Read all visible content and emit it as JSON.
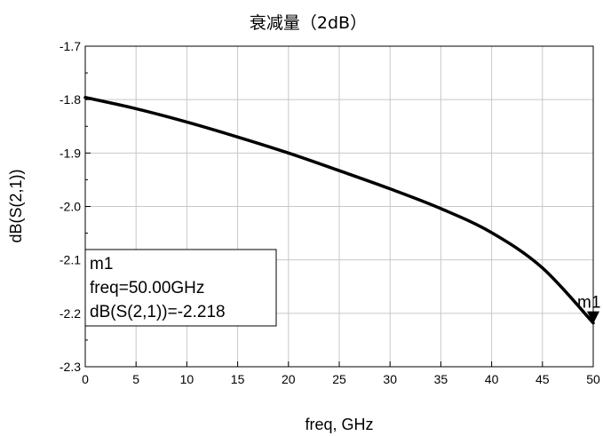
{
  "chart_data": {
    "type": "line",
    "title": "衰减量（2dB）",
    "xlabel": "freq, GHz",
    "ylabel": "dB(S(2,1))",
    "xlim": [
      0,
      50
    ],
    "ylim": [
      -2.3,
      -1.7
    ],
    "x_ticks": [
      "0",
      "5",
      "10",
      "15",
      "20",
      "25",
      "30",
      "35",
      "40",
      "45",
      "50"
    ],
    "y_ticks": [
      "-1.7",
      "-1.8",
      "-1.9",
      "-2.0",
      "-2.1",
      "-2.2",
      "-2.3"
    ],
    "grid": true,
    "series": [
      {
        "color": "#000000",
        "x": [
          0,
          5,
          10,
          15,
          20,
          25,
          30,
          35,
          40,
          45,
          50
        ],
        "y": [
          -1.796,
          -1.817,
          -1.842,
          -1.87,
          -1.9,
          -1.933,
          -1.967,
          -2.004,
          -2.049,
          -2.115,
          -2.218
        ]
      }
    ],
    "marker": {
      "name": "m1",
      "x": 50,
      "y": -2.218,
      "label_lines": [
        "m1",
        "freq=50.00GHz",
        "dB(S(2,1))=-2.218"
      ]
    }
  }
}
